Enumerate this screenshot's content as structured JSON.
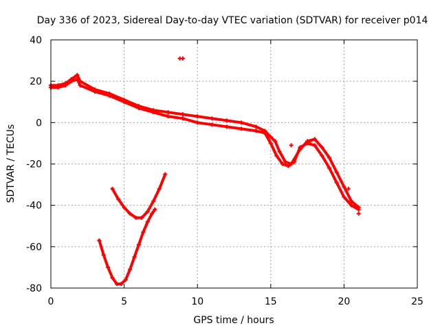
{
  "chart_data": {
    "type": "scatter",
    "title": "Day 336 of 2023, Sidereal Day-to-day VTEC variation (SDTVAR) for receiver p014",
    "xlabel": "GPS time / hours",
    "ylabel": "SDTVAR / TECUs",
    "xlim": [
      0,
      25
    ],
    "ylim": [
      -80,
      40
    ],
    "xticks": [
      0,
      5,
      10,
      15,
      20,
      25
    ],
    "yticks": [
      -80,
      -60,
      -40,
      -20,
      0,
      20,
      40
    ],
    "grid": true,
    "series_color": "#ff0000",
    "series": [
      {
        "name": "main-trace-upper",
        "x": [
          0,
          0.5,
          1.0,
          1.4,
          1.8,
          2.0,
          3.0,
          4.0,
          5.0,
          6.0,
          7.0,
          8.0,
          9.0,
          10.0,
          11.0,
          12.0,
          13.0,
          14.0,
          14.6,
          15.0,
          15.3,
          15.6,
          16.0,
          16.4,
          17.0,
          17.5,
          18.0,
          18.5,
          19.0,
          19.5,
          20.0,
          20.5,
          21.0
        ],
        "y": [
          18,
          18,
          19,
          21,
          23,
          20,
          16,
          14,
          11,
          8,
          6,
          5,
          4,
          3,
          2,
          1,
          0,
          -2,
          -4,
          -7,
          -9,
          -14,
          -19,
          -20,
          -13,
          -9,
          -8,
          -12,
          -17,
          -24,
          -31,
          -38,
          -41
        ]
      },
      {
        "name": "main-trace-lower",
        "x": [
          0,
          0.5,
          1.0,
          1.4,
          1.8,
          2.0,
          3.0,
          4.0,
          5.0,
          6.0,
          7.0,
          8.0,
          9.0,
          10.0,
          11.0,
          12.0,
          13.0,
          14.0,
          14.6,
          15.0,
          15.4,
          15.8,
          16.2,
          16.6,
          17.0,
          17.5,
          18.0,
          18.5,
          19.0,
          19.5,
          20.0,
          20.5,
          21.0
        ],
        "y": [
          17,
          17,
          18,
          20,
          21,
          18,
          15,
          13,
          10,
          7,
          5,
          3,
          2,
          0,
          -1,
          -2,
          -3,
          -4,
          -5,
          -10,
          -16,
          -20,
          -21,
          -19,
          -12,
          -10,
          -11,
          -16,
          -22,
          -29,
          -36,
          -40,
          -42
        ]
      },
      {
        "name": "arc-upper",
        "x": [
          4.2,
          4.6,
          5.0,
          5.4,
          5.8,
          6.2,
          6.6,
          7.0,
          7.4,
          7.8
        ],
        "y": [
          -32,
          -37,
          -41,
          -44,
          -46,
          -46,
          -43,
          -38,
          -32,
          -25
        ]
      },
      {
        "name": "arc-lower",
        "x": [
          3.3,
          3.6,
          3.9,
          4.2,
          4.5,
          4.8,
          5.1,
          5.4,
          5.7,
          6.0,
          6.3,
          6.6,
          6.9,
          7.1
        ],
        "y": [
          -57,
          -64,
          -70,
          -75,
          -78,
          -78,
          -76,
          -71,
          -65,
          -59,
          -53,
          -48,
          -44,
          -42
        ]
      },
      {
        "name": "isolated-points",
        "x": [
          9.0,
          8.8,
          21.0,
          20.3,
          17.7,
          16.4
        ],
        "y": [
          31,
          31,
          -44,
          -32,
          -9,
          -11
        ]
      }
    ]
  }
}
